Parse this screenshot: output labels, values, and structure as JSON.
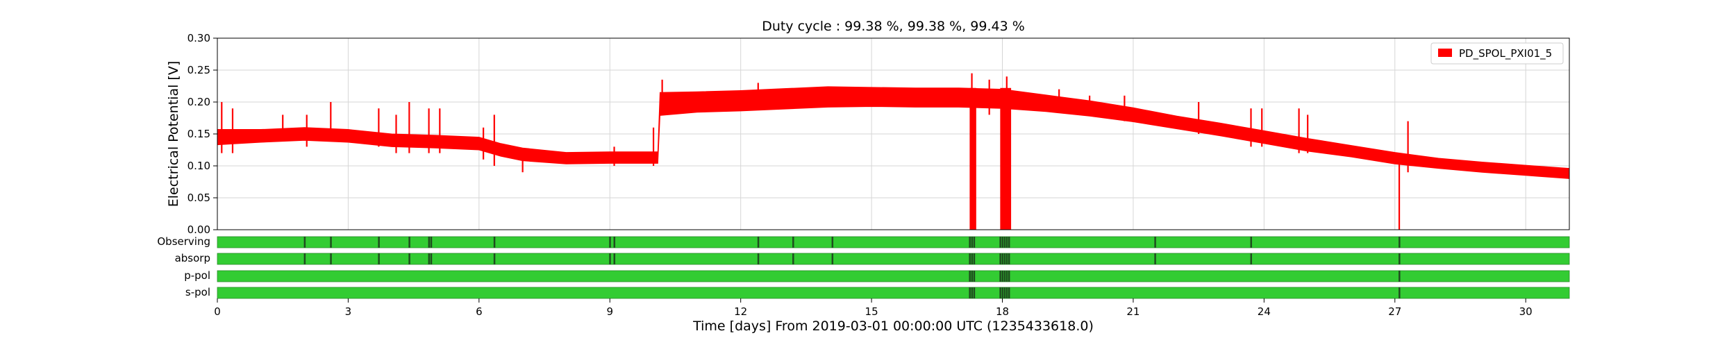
{
  "chart_data": {
    "type": "line",
    "title": "Duty cycle : 99.38 %, 99.38 %, 99.43 %",
    "xlabel": "Time [days] From 2019-03-01 00:00:00 UTC (1235433618.0)",
    "ylabel": "Electrical Potential [V]",
    "xlim": [
      0,
      31
    ],
    "ylim": [
      0,
      0.3
    ],
    "x_ticks": [
      0,
      3,
      6,
      9,
      12,
      15,
      18,
      21,
      24,
      27,
      30
    ],
    "y_ticks": [
      0.0,
      0.05,
      0.1,
      0.15,
      0.2,
      0.25,
      0.3
    ],
    "x_tick_labels": [
      "0",
      "3",
      "6",
      "9",
      "12",
      "15",
      "18",
      "21",
      "24",
      "27",
      "30"
    ],
    "y_tick_labels": [
      "0.00",
      "0.05",
      "0.10",
      "0.15",
      "0.20",
      "0.25",
      "0.30"
    ],
    "grid": true,
    "legend_position": "top-right",
    "series": [
      {
        "name": "PD_SPOL_PXI01_5",
        "color": "#ff0000",
        "band": [
          {
            "x": 0.0,
            "center": 0.145,
            "half": 0.012
          },
          {
            "x": 1.0,
            "center": 0.147,
            "half": 0.01
          },
          {
            "x": 2.0,
            "center": 0.15,
            "half": 0.01
          },
          {
            "x": 3.0,
            "center": 0.147,
            "half": 0.01
          },
          {
            "x": 4.0,
            "center": 0.14,
            "half": 0.01
          },
          {
            "x": 5.0,
            "center": 0.138,
            "half": 0.01
          },
          {
            "x": 6.0,
            "center": 0.135,
            "half": 0.01
          },
          {
            "x": 6.5,
            "center": 0.125,
            "half": 0.01
          },
          {
            "x": 7.0,
            "center": 0.118,
            "half": 0.01
          },
          {
            "x": 8.0,
            "center": 0.112,
            "half": 0.009
          },
          {
            "x": 9.0,
            "center": 0.113,
            "half": 0.009
          },
          {
            "x": 10.1,
            "center": 0.113,
            "half": 0.009
          },
          {
            "x": 10.15,
            "center": 0.197,
            "half": 0.018
          },
          {
            "x": 11.0,
            "center": 0.2,
            "half": 0.016
          },
          {
            "x": 12.0,
            "center": 0.202,
            "half": 0.016
          },
          {
            "x": 13.0,
            "center": 0.205,
            "half": 0.016
          },
          {
            "x": 14.0,
            "center": 0.208,
            "half": 0.016
          },
          {
            "x": 15.0,
            "center": 0.208,
            "half": 0.015
          },
          {
            "x": 16.0,
            "center": 0.207,
            "half": 0.015
          },
          {
            "x": 17.0,
            "center": 0.207,
            "half": 0.015
          },
          {
            "x": 18.0,
            "center": 0.205,
            "half": 0.015
          },
          {
            "x": 19.0,
            "center": 0.198,
            "half": 0.013
          },
          {
            "x": 20.0,
            "center": 0.19,
            "half": 0.012
          },
          {
            "x": 21.0,
            "center": 0.18,
            "half": 0.011
          },
          {
            "x": 22.0,
            "center": 0.168,
            "half": 0.01
          },
          {
            "x": 23.0,
            "center": 0.157,
            "half": 0.01
          },
          {
            "x": 24.0,
            "center": 0.145,
            "half": 0.01
          },
          {
            "x": 25.0,
            "center": 0.133,
            "half": 0.01
          },
          {
            "x": 26.0,
            "center": 0.123,
            "half": 0.009
          },
          {
            "x": 27.0,
            "center": 0.112,
            "half": 0.009
          },
          {
            "x": 28.0,
            "center": 0.104,
            "half": 0.008
          },
          {
            "x": 29.0,
            "center": 0.098,
            "half": 0.008
          },
          {
            "x": 30.0,
            "center": 0.093,
            "half": 0.008
          },
          {
            "x": 31.0,
            "center": 0.088,
            "half": 0.008
          }
        ],
        "spikes": [
          {
            "x": 0.1,
            "low": 0.12,
            "high": 0.2
          },
          {
            "x": 0.35,
            "low": 0.12,
            "high": 0.19
          },
          {
            "x": 1.5,
            "low": 0.14,
            "high": 0.18
          },
          {
            "x": 2.05,
            "low": 0.13,
            "high": 0.18
          },
          {
            "x": 2.6,
            "low": 0.14,
            "high": 0.2
          },
          {
            "x": 3.7,
            "low": 0.13,
            "high": 0.19
          },
          {
            "x": 4.1,
            "low": 0.12,
            "high": 0.18
          },
          {
            "x": 4.4,
            "low": 0.12,
            "high": 0.2
          },
          {
            "x": 4.85,
            "low": 0.12,
            "high": 0.19
          },
          {
            "x": 5.1,
            "low": 0.12,
            "high": 0.19
          },
          {
            "x": 6.1,
            "low": 0.11,
            "high": 0.16
          },
          {
            "x": 6.35,
            "low": 0.1,
            "high": 0.18
          },
          {
            "x": 7.0,
            "low": 0.09,
            "high": 0.12
          },
          {
            "x": 9.1,
            "low": 0.1,
            "high": 0.13
          },
          {
            "x": 10.0,
            "low": 0.1,
            "high": 0.16
          },
          {
            "x": 10.2,
            "low": 0.18,
            "high": 0.235
          },
          {
            "x": 12.4,
            "low": 0.19,
            "high": 0.23
          },
          {
            "x": 17.3,
            "low": 0.18,
            "high": 0.245
          },
          {
            "x": 17.7,
            "low": 0.18,
            "high": 0.235
          },
          {
            "x": 18.1,
            "low": 0.17,
            "high": 0.24
          },
          {
            "x": 19.3,
            "low": 0.19,
            "high": 0.22
          },
          {
            "x": 20.0,
            "low": 0.18,
            "high": 0.21
          },
          {
            "x": 20.8,
            "low": 0.17,
            "high": 0.21
          },
          {
            "x": 22.5,
            "low": 0.15,
            "high": 0.2
          },
          {
            "x": 23.7,
            "low": 0.13,
            "high": 0.19
          },
          {
            "x": 23.95,
            "low": 0.13,
            "high": 0.19
          },
          {
            "x": 24.8,
            "low": 0.12,
            "high": 0.19
          },
          {
            "x": 25.0,
            "low": 0.12,
            "high": 0.18
          },
          {
            "x": 27.1,
            "low": 0.0,
            "high": 0.12
          },
          {
            "x": 27.3,
            "low": 0.09,
            "high": 0.17
          }
        ],
        "gaps": [
          {
            "x0": 17.25,
            "x1": 17.4,
            "low": 0.0
          },
          {
            "x0": 17.95,
            "x1": 18.2,
            "low": 0.0
          }
        ]
      }
    ],
    "segment_rows": [
      {
        "label": "Observing",
        "active_color": "#33cc33",
        "breaks": [
          2.0,
          2.6,
          3.7,
          4.4,
          4.85,
          4.9,
          6.35,
          9.0,
          9.1,
          12.4,
          13.2,
          14.1,
          17.25,
          17.3,
          17.35,
          17.95,
          18.0,
          18.05,
          18.1,
          18.15,
          21.5,
          23.7,
          27.1
        ]
      },
      {
        "label": "absorp",
        "active_color": "#33cc33",
        "breaks": [
          2.0,
          2.6,
          3.7,
          4.4,
          4.85,
          4.9,
          6.35,
          9.0,
          9.1,
          12.4,
          13.2,
          14.1,
          17.25,
          17.3,
          17.35,
          17.95,
          18.0,
          18.05,
          18.1,
          18.15,
          21.5,
          23.7,
          27.1
        ]
      },
      {
        "label": "p-pol",
        "active_color": "#33cc33",
        "breaks": [
          17.25,
          17.3,
          17.35,
          17.95,
          18.0,
          18.05,
          18.1,
          18.15,
          27.1
        ]
      },
      {
        "label": "s-pol",
        "active_color": "#33cc33",
        "breaks": [
          17.25,
          17.3,
          17.35,
          17.95,
          18.0,
          18.05,
          18.1,
          18.15,
          27.1
        ]
      }
    ]
  }
}
